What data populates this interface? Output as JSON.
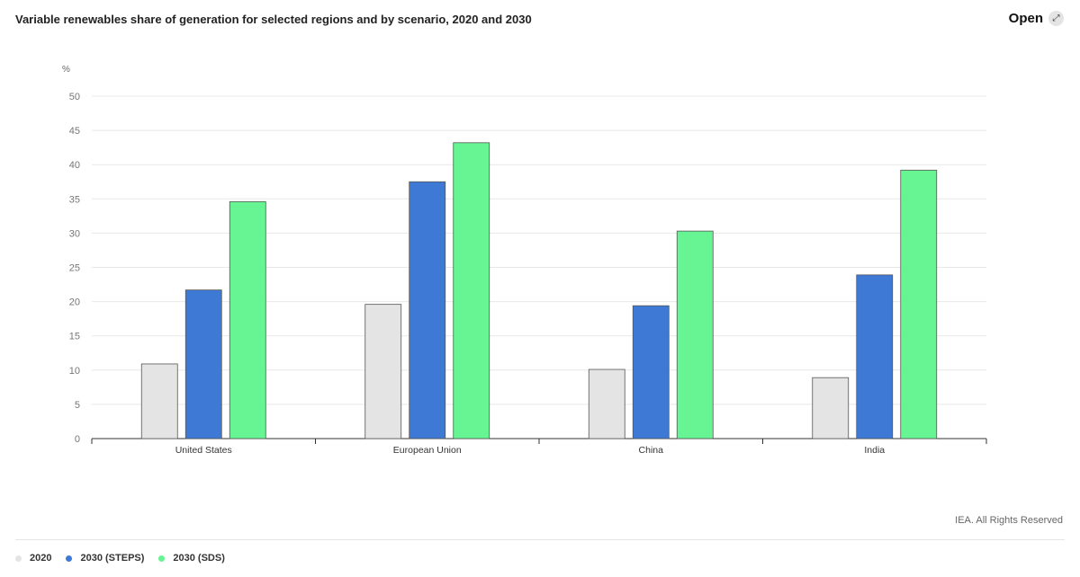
{
  "header": {
    "title": "Variable renewables share of generation for selected regions and by scenario, 2020 and 2030",
    "open_label": "Open",
    "open_icon": "expand-icon"
  },
  "credit": "IEA. All Rights Reserved",
  "chart_data": {
    "type": "bar",
    "title": "Variable renewables share of generation for selected regions and by scenario, 2020 and 2030",
    "ylabel": "%",
    "ylim": [
      0,
      50
    ],
    "yticks": [
      "0",
      "5",
      "10",
      "15",
      "20",
      "25",
      "30",
      "35",
      "40",
      "45",
      "50"
    ],
    "grid": true,
    "legend_position": "bottom-left",
    "categories": [
      "United States",
      "European Union",
      "China",
      "India"
    ],
    "series": [
      {
        "name": "2020",
        "color": "#e4e4e4",
        "values": [
          10.9,
          19.6,
          10.1,
          8.9
        ]
      },
      {
        "name": "2030 (STEPS)",
        "color": "#3e79d6",
        "values": [
          21.7,
          37.5,
          19.4,
          23.9
        ]
      },
      {
        "name": "2030 (SDS)",
        "color": "#66f592",
        "values": [
          34.6,
          43.2,
          30.3,
          39.2
        ]
      }
    ]
  }
}
